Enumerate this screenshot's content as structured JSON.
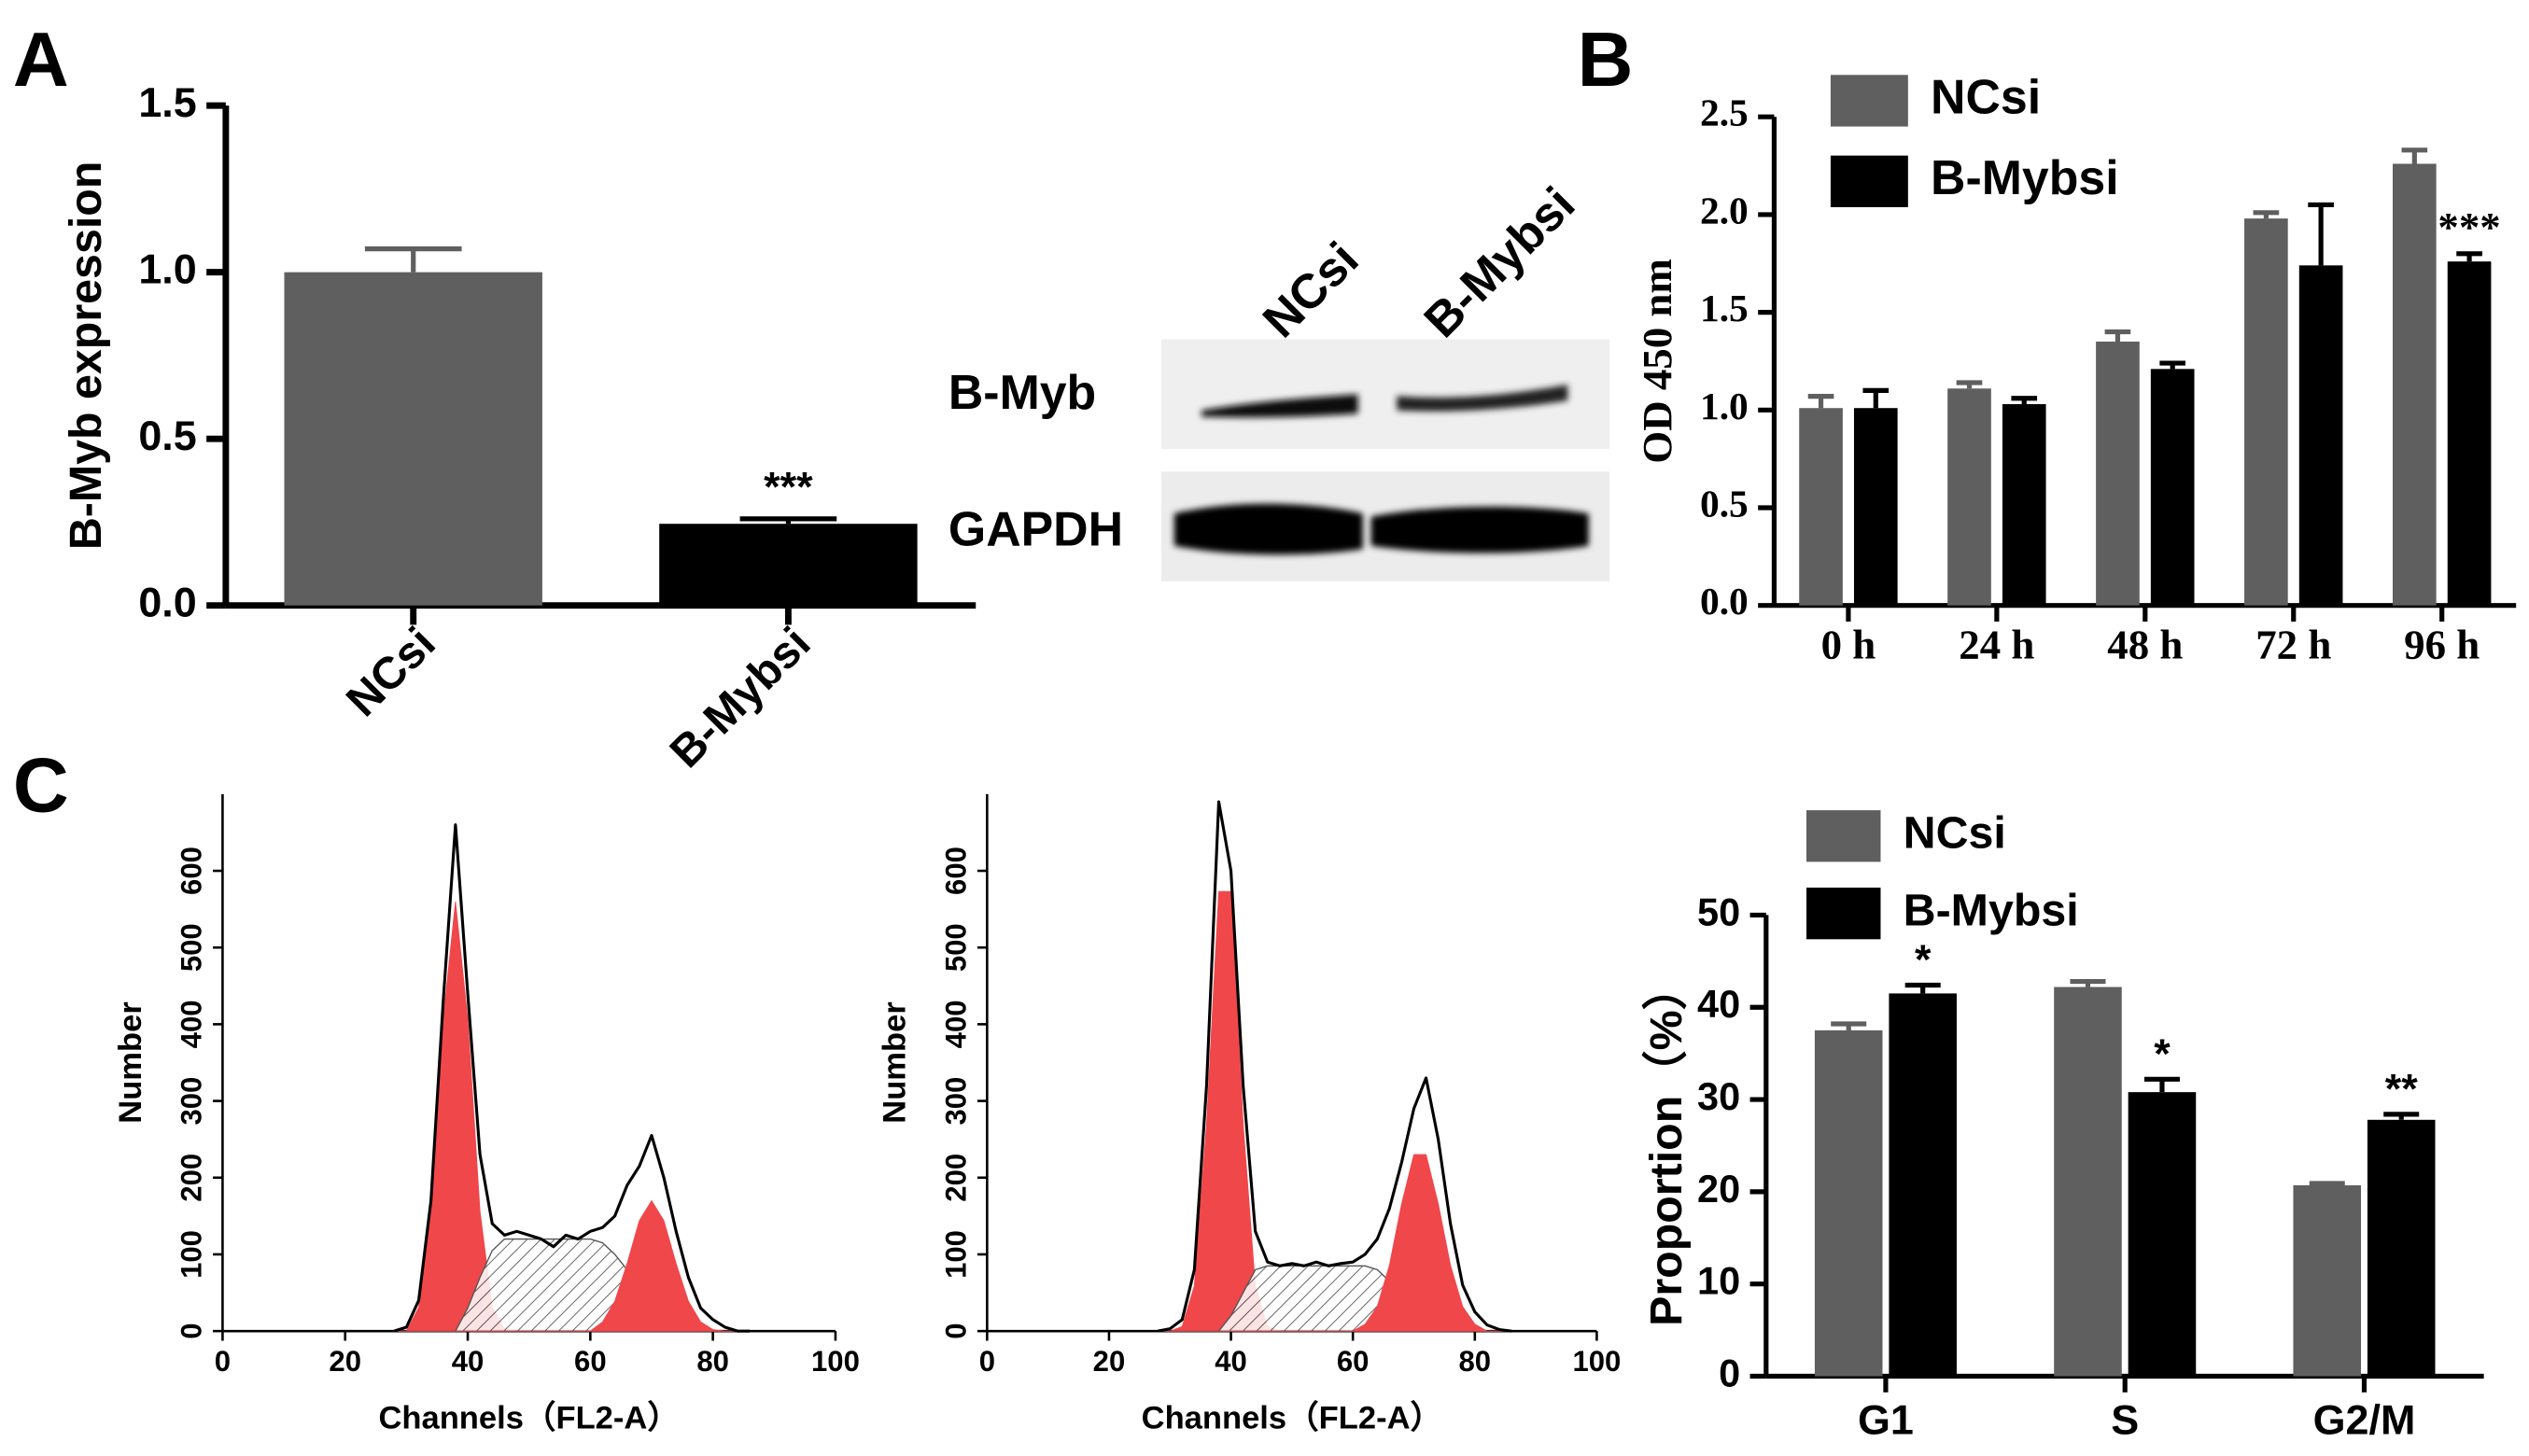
{
  "chart_data": [
    {
      "type": "bar",
      "panel": "A",
      "ylabel": "B-Myb expression",
      "categories": [
        "NCsi",
        "B-Mybsi"
      ],
      "values": [
        1.0,
        0.245
      ],
      "errors": [
        0.07,
        0.015
      ],
      "colors": [
        "#5f5f5f",
        "#000000"
      ],
      "value_annotations": [
        null,
        "***"
      ],
      "ylim": [
        0,
        1.5
      ],
      "yticks": [
        {
          "value": 0,
          "label": "0.0"
        },
        0.5,
        {
          "value": 1,
          "label": "1.0"
        },
        1.5
      ]
    },
    {
      "type": "bar",
      "panel": "B",
      "ylabel": "OD 450 nm",
      "categories": [
        "0 h",
        "24 h",
        "48 h",
        "72 h",
        "96 h"
      ],
      "series": [
        {
          "name": "NCsi",
          "color": "#5f5f5f",
          "values": [
            1.01,
            1.11,
            1.35,
            1.98,
            2.26
          ],
          "errors": [
            0.06,
            0.03,
            0.05,
            0.03,
            0.07
          ],
          "annotations": [
            null,
            null,
            null,
            null,
            null
          ]
        },
        {
          "name": "B-Mybsi",
          "color": "#000000",
          "values": [
            1.01,
            1.03,
            1.21,
            1.74,
            1.76
          ],
          "errors": [
            0.09,
            0.03,
            0.03,
            0.31,
            0.04
          ],
          "annotations": [
            null,
            null,
            null,
            null,
            "***"
          ]
        }
      ],
      "legend": "upper left",
      "ylim": [
        0,
        2.5
      ],
      "yticks": [
        {
          "value": 0,
          "label": "0.0"
        },
        0.5,
        {
          "value": 1,
          "label": "1.0"
        },
        1.5,
        {
          "value": 2,
          "label": "2.0"
        },
        2.5
      ]
    },
    {
      "type": "area",
      "panel": "C",
      "xlabel": "Channels（FL2-A）",
      "ylabel": "Number",
      "x": [
        28,
        30,
        32,
        34,
        36,
        38,
        40,
        42,
        44,
        46,
        48,
        50,
        52,
        54,
        56,
        58,
        60,
        62,
        64,
        66,
        68,
        70,
        72,
        74,
        76,
        78,
        80,
        82,
        84,
        86
      ],
      "series": [
        {
          "color": "#f0474a",
          "style": "area",
          "values": [
            0,
            0,
            31,
            156,
            407,
            560,
            407,
            156,
            31,
            3,
            0,
            0,
            0,
            0,
            0,
            0,
            0,
            0,
            0,
            0,
            0,
            0,
            0,
            0,
            0,
            0,
            0,
            0,
            0,
            0
          ]
        },
        {
          "color": "#555555",
          "style": "hatched",
          "values": [
            0,
            0,
            0,
            0,
            0,
            0,
            30,
            70,
            105,
            120,
            120,
            120,
            120,
            120,
            120,
            120,
            120,
            115,
            100,
            80,
            55,
            35,
            20,
            8,
            0,
            0,
            0,
            0,
            0,
            0
          ]
        },
        {
          "color": "#f0474a",
          "style": "area",
          "values": [
            0,
            0,
            0,
            0,
            0,
            0,
            0,
            0,
            0,
            0,
            0,
            0,
            0,
            0,
            0,
            0,
            0,
            12,
            39,
            88,
            144,
            170,
            144,
            88,
            39,
            12,
            2,
            0,
            0,
            0
          ]
        },
        {
          "color": "#000000",
          "style": "line",
          "values": [
            0,
            5,
            40,
            170,
            430,
            660,
            440,
            230,
            140,
            125,
            130,
            125,
            120,
            110,
            125,
            120,
            130,
            135,
            150,
            190,
            215,
            255,
            200,
            130,
            70,
            30,
            15,
            5,
            0,
            0
          ]
        }
      ],
      "xlim": [
        0,
        100
      ],
      "xticks": [
        0,
        20,
        40,
        60,
        80,
        100
      ],
      "ylim": [
        0,
        700
      ],
      "yticks": [
        0,
        100,
        200,
        300,
        400,
        500,
        600
      ]
    },
    {
      "type": "area",
      "xlabel": "Channels（FL2-A）",
      "ylabel": "Number",
      "x": [
        28,
        30,
        32,
        34,
        36,
        38,
        40,
        42,
        44,
        46,
        48,
        50,
        52,
        54,
        56,
        58,
        60,
        62,
        64,
        66,
        68,
        70,
        72,
        74,
        76,
        78,
        80,
        82,
        84,
        86
      ],
      "series": [
        {
          "color": "#f0474a",
          "style": "area",
          "values": [
            0,
            0,
            6,
            59,
            270,
            573,
            573,
            270,
            59,
            6,
            0,
            0,
            0,
            0,
            0,
            0,
            0,
            0,
            0,
            0,
            0,
            0,
            0,
            0,
            0,
            0,
            0,
            0,
            0,
            0
          ]
        },
        {
          "color": "#555555",
          "style": "hatched",
          "values": [
            0,
            0,
            0,
            0,
            0,
            0,
            20,
            50,
            80,
            85,
            85,
            85,
            85,
            85,
            85,
            85,
            85,
            85,
            80,
            65,
            45,
            25,
            12,
            5,
            0,
            0,
            0,
            0,
            0,
            0
          ]
        },
        {
          "color": "#f0474a",
          "style": "area",
          "values": [
            0,
            0,
            0,
            0,
            0,
            0,
            0,
            0,
            0,
            0,
            0,
            0,
            0,
            0,
            0,
            0,
            0,
            9,
            32,
            86,
            166,
            230,
            230,
            166,
            86,
            32,
            9,
            0,
            0,
            0
          ]
        },
        {
          "color": "#000000",
          "style": "line",
          "values": [
            0,
            3,
            15,
            80,
            320,
            690,
            600,
            320,
            130,
            90,
            85,
            88,
            85,
            90,
            85,
            88,
            90,
            100,
            120,
            160,
            220,
            290,
            330,
            250,
            140,
            60,
            25,
            8,
            2,
            0
          ]
        }
      ],
      "xlim": [
        0,
        100
      ],
      "xticks": [
        0,
        20,
        40,
        60,
        80,
        100
      ],
      "ylim": [
        0,
        700
      ],
      "yticks": [
        0,
        100,
        200,
        300,
        400,
        500,
        600
      ]
    },
    {
      "type": "bar",
      "ylabel": "Proportion（%）",
      "categories": [
        "G1",
        "S",
        "G2/M"
      ],
      "series": [
        {
          "name": "NCsi",
          "color": "#5f5f5f",
          "values": [
            37.5,
            42.2,
            20.7
          ],
          "errors": [
            0.7,
            0.6,
            0.2
          ],
          "annotations": [
            null,
            null,
            null
          ]
        },
        {
          "name": "B-Mybsi",
          "color": "#000000",
          "values": [
            41.5,
            30.8,
            27.8
          ],
          "errors": [
            0.9,
            1.4,
            0.6
          ],
          "annotations": [
            "*",
            "*",
            "**"
          ]
        }
      ],
      "legend": "upper left",
      "ylim": [
        0,
        50
      ],
      "yticks": [
        0,
        10,
        20,
        30,
        40,
        50
      ]
    }
  ],
  "blot": {
    "lanes": [
      "NCsi",
      "B-Mybsi"
    ],
    "rows": [
      "B-Myb",
      "GAPDH"
    ]
  }
}
